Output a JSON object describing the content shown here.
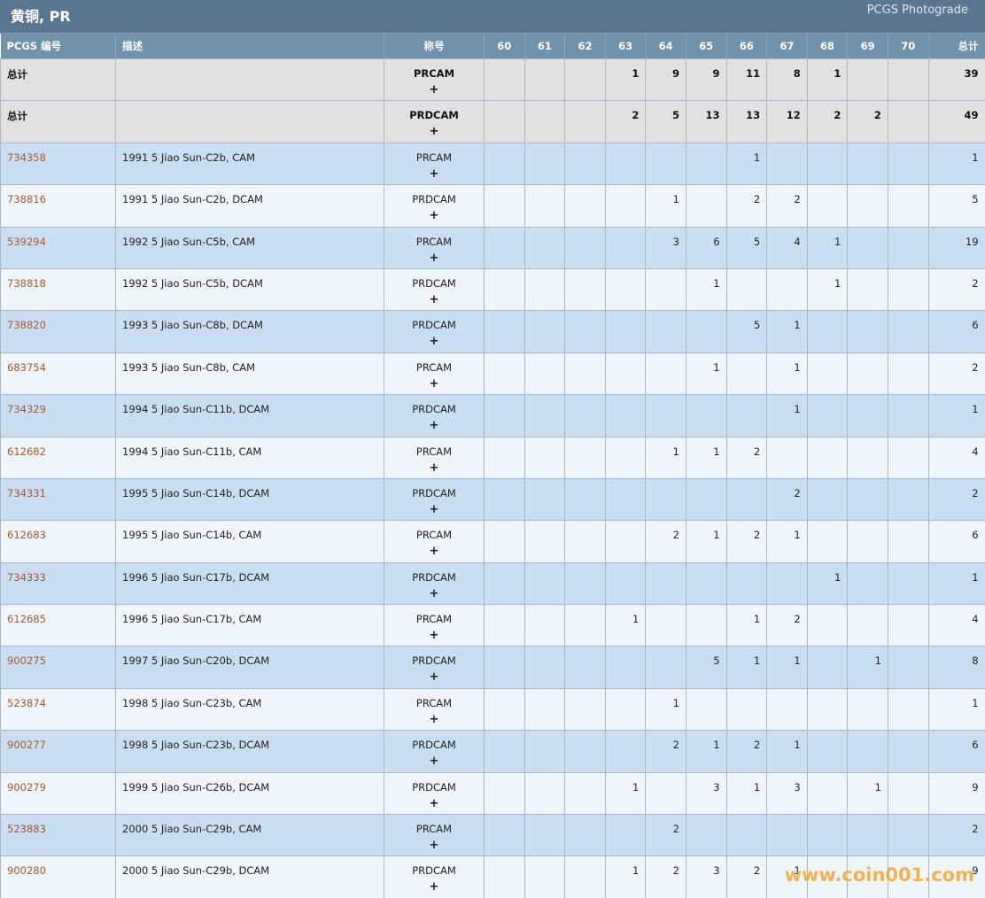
{
  "header": {
    "title": "黄铜, PR",
    "subtitle": "PCGS Photograde"
  },
  "table": {
    "columns": [
      "PCGS 编号",
      "描述",
      "称号",
      60,
      61,
      62,
      63,
      64,
      65,
      66,
      67,
      68,
      69,
      70,
      "总计"
    ],
    "expand_label": "+",
    "totals": [
      {
        "label": "总计",
        "designation": "PRCAM",
        "grades": [
          null,
          null,
          null,
          1,
          9,
          9,
          11,
          8,
          1,
          null,
          null
        ],
        "total": 39
      },
      {
        "label": "总计",
        "designation": "PRDCAM",
        "grades": [
          null,
          null,
          null,
          2,
          5,
          13,
          13,
          12,
          2,
          2,
          null
        ],
        "total": 49
      }
    ],
    "rows": [
      {
        "id": "734358",
        "description": "1991 5 Jiao Sun-C2b, CAM",
        "designation": "PRCAM",
        "grades": [
          null,
          null,
          null,
          null,
          null,
          null,
          1,
          null,
          null,
          null,
          null
        ],
        "total": 1
      },
      {
        "id": "738816",
        "description": "1991 5 Jiao Sun-C2b, DCAM",
        "designation": "PRDCAM",
        "grades": [
          null,
          null,
          null,
          null,
          1,
          null,
          2,
          2,
          null,
          null,
          null
        ],
        "total": 5
      },
      {
        "id": "539294",
        "description": "1992 5 Jiao Sun-C5b, CAM",
        "designation": "PRCAM",
        "grades": [
          null,
          null,
          null,
          null,
          3,
          6,
          5,
          4,
          1,
          null,
          null
        ],
        "total": 19
      },
      {
        "id": "738818",
        "description": "1992 5 Jiao Sun-C5b, DCAM",
        "designation": "PRDCAM",
        "grades": [
          null,
          null,
          null,
          null,
          null,
          1,
          null,
          null,
          1,
          null,
          null
        ],
        "total": 2
      },
      {
        "id": "738820",
        "description": "1993 5 Jiao Sun-C8b, DCAM",
        "designation": "PRDCAM",
        "grades": [
          null,
          null,
          null,
          null,
          null,
          null,
          5,
          1,
          null,
          null,
          null
        ],
        "total": 6
      },
      {
        "id": "683754",
        "description": "1993 5 Jiao Sun-C8b, CAM",
        "designation": "PRCAM",
        "grades": [
          null,
          null,
          null,
          null,
          null,
          1,
          null,
          1,
          null,
          null,
          null
        ],
        "total": 2
      },
      {
        "id": "734329",
        "description": "1994 5 Jiao Sun-C11b, DCAM",
        "designation": "PRDCAM",
        "grades": [
          null,
          null,
          null,
          null,
          null,
          null,
          null,
          1,
          null,
          null,
          null
        ],
        "total": 1
      },
      {
        "id": "612682",
        "description": "1994 5 Jiao Sun-C11b, CAM",
        "designation": "PRCAM",
        "grades": [
          null,
          null,
          null,
          null,
          1,
          1,
          2,
          null,
          null,
          null,
          null
        ],
        "total": 4
      },
      {
        "id": "734331",
        "description": "1995 5 Jiao Sun-C14b, DCAM",
        "designation": "PRDCAM",
        "grades": [
          null,
          null,
          null,
          null,
          null,
          null,
          null,
          2,
          null,
          null,
          null
        ],
        "total": 2
      },
      {
        "id": "612683",
        "description": "1995 5 Jiao Sun-C14b, CAM",
        "designation": "PRCAM",
        "grades": [
          null,
          null,
          null,
          null,
          2,
          1,
          2,
          1,
          null,
          null,
          null
        ],
        "total": 6
      },
      {
        "id": "734333",
        "description": "1996 5 Jiao Sun-C17b, DCAM",
        "designation": "PRDCAM",
        "grades": [
          null,
          null,
          null,
          null,
          null,
          null,
          null,
          null,
          1,
          null,
          null
        ],
        "total": 1
      },
      {
        "id": "612685",
        "description": "1996 5 Jiao Sun-C17b, CAM",
        "designation": "PRCAM",
        "grades": [
          null,
          null,
          null,
          1,
          null,
          null,
          1,
          2,
          null,
          null,
          null
        ],
        "total": 4
      },
      {
        "id": "900275",
        "description": "1997 5 Jiao Sun-C20b, DCAM",
        "designation": "PRDCAM",
        "grades": [
          null,
          null,
          null,
          null,
          null,
          5,
          1,
          1,
          null,
          1,
          null
        ],
        "total": 8
      },
      {
        "id": "523874",
        "description": "1998 5 Jiao Sun-C23b, CAM",
        "designation": "PRCAM",
        "grades": [
          null,
          null,
          null,
          null,
          1,
          null,
          null,
          null,
          null,
          null,
          null
        ],
        "total": 1
      },
      {
        "id": "900277",
        "description": "1998 5 Jiao Sun-C23b, DCAM",
        "designation": "PRDCAM",
        "grades": [
          null,
          null,
          null,
          null,
          2,
          1,
          2,
          1,
          null,
          null,
          null
        ],
        "total": 6
      },
      {
        "id": "900279",
        "description": "1999 5 Jiao Sun-C26b, DCAM",
        "designation": "PRDCAM",
        "grades": [
          null,
          null,
          null,
          1,
          null,
          3,
          1,
          3,
          null,
          1,
          null
        ],
        "total": 9
      },
      {
        "id": "523883",
        "description": "2000 5 Jiao Sun-C29b, CAM",
        "designation": "PRCAM",
        "grades": [
          null,
          null,
          null,
          null,
          2,
          null,
          null,
          null,
          null,
          null,
          null
        ],
        "total": 2
      },
      {
        "id": "900280",
        "description": "2000 5 Jiao Sun-C29b, DCAM",
        "designation": "PRDCAM",
        "grades": [
          null,
          null,
          null,
          1,
          2,
          3,
          2,
          1,
          null,
          null,
          null
        ],
        "total": 9
      }
    ]
  },
  "watermark": "www.coin001.com"
}
